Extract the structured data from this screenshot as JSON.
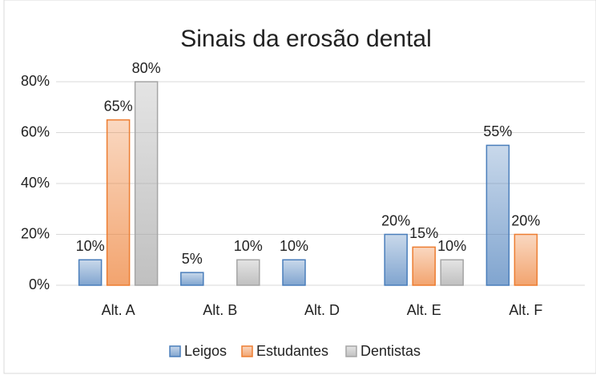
{
  "chart_data": {
    "type": "bar",
    "title": "Sinais da erosão dental",
    "categories": [
      "Alt. A",
      "Alt. B",
      "Alt. D",
      "Alt. E",
      "Alt. F"
    ],
    "series": [
      {
        "name": "Leigos",
        "color": "#4a7ebb",
        "values": [
          10,
          5,
          10,
          20,
          55
        ],
        "value_labels": [
          "10%",
          "5%",
          "10%",
          "20%",
          "55%"
        ]
      },
      {
        "name": "Estudantes",
        "color": "#ed7d31",
        "values": [
          65,
          null,
          null,
          15,
          20
        ],
        "value_labels": [
          "65%",
          null,
          null,
          "15%",
          "20%"
        ]
      },
      {
        "name": "Dentistas",
        "color": "#a5a5a5",
        "values": [
          80,
          10,
          null,
          10,
          null
        ],
        "value_labels": [
          "80%",
          "10%",
          null,
          "10%",
          null
        ]
      }
    ],
    "ylim": [
      0,
      80
    ],
    "yticks": [
      {
        "value": 0,
        "label": "0%"
      },
      {
        "value": 20,
        "label": "20%"
      },
      {
        "value": 40,
        "label": "40%"
      },
      {
        "value": 60,
        "label": "60%"
      },
      {
        "value": 80,
        "label": "80%"
      }
    ],
    "grid": true,
    "legend": "bottom"
  }
}
